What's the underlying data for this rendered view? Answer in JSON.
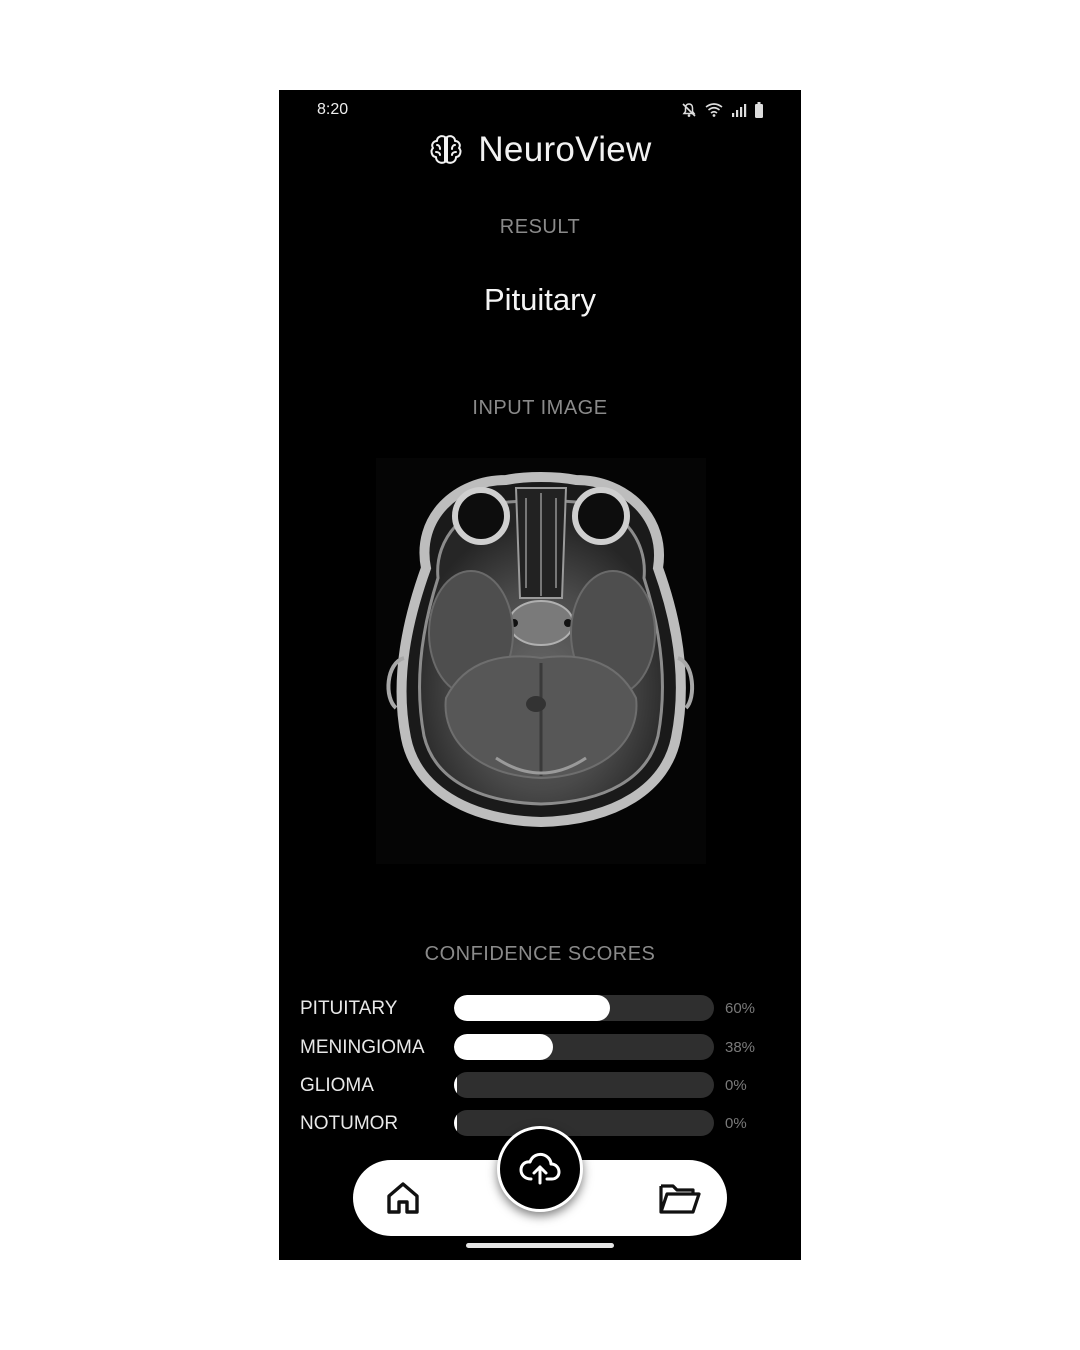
{
  "status_bar": {
    "time": "8:20"
  },
  "header": {
    "app_name": "NeuroView",
    "logo_icon": "brain-icon"
  },
  "result": {
    "label": "RESULT",
    "value": "Pituitary"
  },
  "input_image": {
    "label": "INPUT IMAGE",
    "image_icon": "mri-scan-image"
  },
  "confidence": {
    "label": "CONFIDENCE SCORES",
    "scores": [
      {
        "name": "PITUITARY",
        "percent": 60,
        "percent_text": "60%"
      },
      {
        "name": "MENINGIOMA",
        "percent": 38,
        "percent_text": "38%"
      },
      {
        "name": "GLIOMA",
        "percent": 0,
        "percent_text": "0%"
      },
      {
        "name": "NOTUMOR",
        "percent": 0,
        "percent_text": "0%"
      }
    ]
  },
  "nav": {
    "home_icon": "home-icon",
    "upload_icon": "cloud-upload-icon",
    "folder_icon": "folder-open-icon"
  },
  "colors": {
    "background": "#000000",
    "bar_fill": "#ffffff",
    "bar_track": "#2f2f2f",
    "muted_text": "#8a8a8a"
  }
}
